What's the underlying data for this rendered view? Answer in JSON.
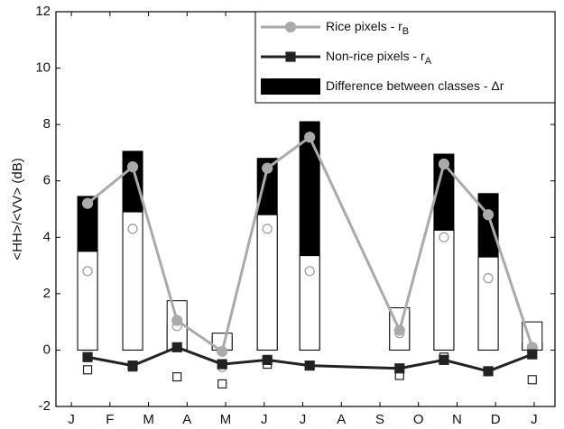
{
  "chart_data": {
    "type": "combo",
    "ylabel": "<HH>/<VV> (dB)",
    "x": [
      0.42,
      1.59,
      2.74,
      3.91,
      5.08,
      6.18,
      8.51,
      9.66,
      10.81,
      11.95
    ],
    "xlim": [
      -0.4,
      12.54
    ],
    "xticks": [
      {
        "value": 0,
        "label": "J"
      },
      {
        "value": 1,
        "label": "F"
      },
      {
        "value": 2,
        "label": "M"
      },
      {
        "value": 3,
        "label": "A"
      },
      {
        "value": 4,
        "label": "M"
      },
      {
        "value": 5,
        "label": "J"
      },
      {
        "value": 6,
        "label": "J"
      },
      {
        "value": 7,
        "label": "A"
      },
      {
        "value": 8,
        "label": "S"
      },
      {
        "value": 9,
        "label": "O"
      },
      {
        "value": 10,
        "label": "N"
      },
      {
        "value": 11,
        "label": "D"
      },
      {
        "value": 12,
        "label": "J"
      }
    ],
    "ylim": [
      -2,
      12
    ],
    "yticks": [
      -2,
      0,
      2,
      4,
      6,
      8,
      10,
      12
    ],
    "legend": "upper right",
    "series": [
      {
        "name": "Difference between classes - Δr",
        "type": "bar",
        "color": "#000000",
        "values": [
          5.45,
          7.05,
          0.95,
          0.45,
          6.8,
          8.1,
          1.35,
          6.95,
          5.55,
          0.25
        ]
      },
      {
        "type": "bar",
        "color": "#ffffff",
        "values": [
          3.5,
          4.9,
          1.75,
          0.6,
          4.8,
          3.35,
          1.5,
          4.25,
          3.3,
          1.0
        ]
      },
      {
        "type": "scatter",
        "marker": "circle",
        "color": "#999999",
        "values": [
          2.8,
          4.3,
          0.85,
          -0.6,
          4.3,
          2.8,
          0.6,
          4.0,
          2.55,
          -0.05
        ]
      },
      {
        "type": "scatter",
        "marker": "square",
        "color": "#222222",
        "values": [
          -0.7,
          -0.6,
          -0.95,
          -1.2,
          -0.5,
          -0.55,
          -0.9,
          -0.25,
          -0.75,
          -1.05
        ]
      },
      {
        "name": "Rice pixels - r",
        "name_sub": "B",
        "type": "line",
        "marker": "circle",
        "color": "#aaaaaa",
        "values": [
          5.2,
          6.5,
          1.05,
          -0.05,
          6.45,
          7.55,
          0.7,
          6.6,
          4.8,
          0.1
        ]
      },
      {
        "name": "Non-rice pixels - r",
        "name_sub": "A",
        "type": "line",
        "marker": "square",
        "color": "#222222",
        "values": [
          -0.25,
          -0.55,
          0.1,
          -0.5,
          -0.35,
          -0.55,
          -0.65,
          -0.35,
          -0.75,
          -0.15
        ]
      }
    ]
  }
}
